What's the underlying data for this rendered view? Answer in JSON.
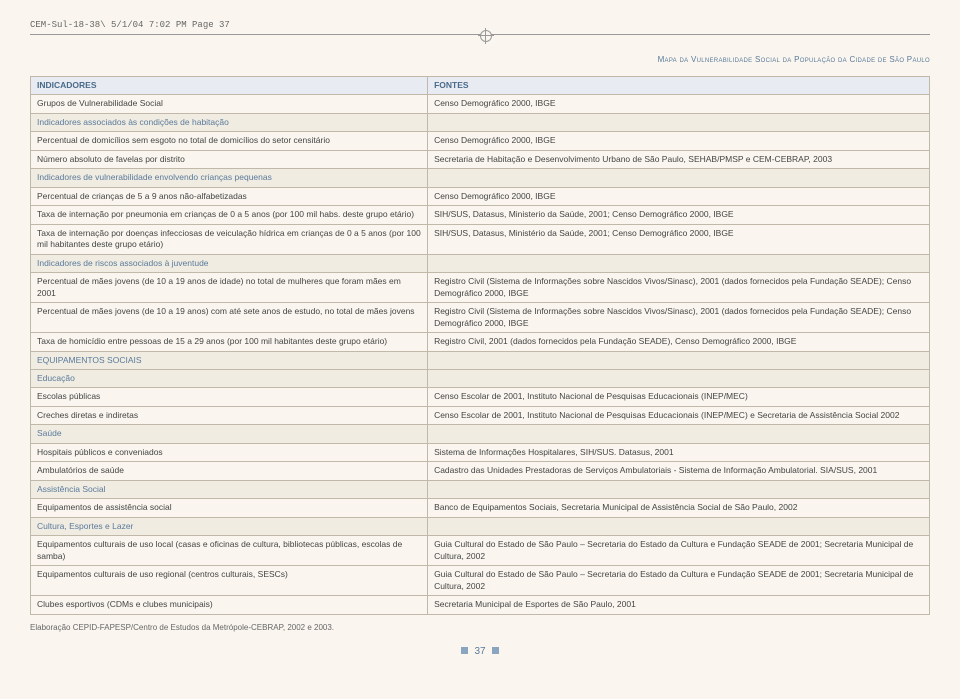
{
  "printHeader": "CEM-Sul-18-38\\  5/1/04  7:02 PM  Page 37",
  "docTitle": "Mapa da Vulnerabilidade Social da População da Cidade de São Paulo",
  "headers": {
    "left": "INDICADORES",
    "right": "FONTES"
  },
  "rows": [
    {
      "type": "data",
      "l": "Grupos de Vulnerabilidade Social",
      "r": "Censo Demográfico 2000, IBGE"
    },
    {
      "type": "section",
      "l": "Indicadores associados às condições de habitação",
      "r": ""
    },
    {
      "type": "data",
      "l": "Percentual de domicílios sem esgoto no total de domicílios do setor censitário",
      "r": "Censo Demográfico 2000, IBGE"
    },
    {
      "type": "data",
      "l": "Número absoluto de favelas por distrito",
      "r": "Secretaria de Habitação e Desenvolvimento Urbano de São Paulo, SEHAB/PMSP e CEM-CEBRAP, 2003"
    },
    {
      "type": "section",
      "l": "Indicadores de vulnerabilidade envolvendo crianças pequenas",
      "r": ""
    },
    {
      "type": "data",
      "l": "Percentual de crianças de 5 a 9 anos não-alfabetizadas",
      "r": "Censo Demográfico 2000, IBGE"
    },
    {
      "type": "data",
      "l": "Taxa de internação por pneumonia em crianças de 0 a 5 anos (por 100 mil habs. deste grupo etário)",
      "r": "SIH/SUS, Datasus, Ministerio da Saúde, 2001; Censo Demográfico 2000, IBGE"
    },
    {
      "type": "data",
      "l": "Taxa de internação por doenças infecciosas de veiculação hídrica em crianças de 0 a 5 anos (por 100 mil habitantes deste grupo etário)",
      "r": "SIH/SUS, Datasus, Ministério da Saúde, 2001; Censo Demográfico 2000, IBGE"
    },
    {
      "type": "section",
      "l": "Indicadores de riscos associados à juventude",
      "r": ""
    },
    {
      "type": "data",
      "l": "Percentual de mães jovens (de 10 a 19 anos de idade) no total de mulheres que foram mães em 2001",
      "r": "Registro Civil (Sistema de Informações sobre Nascidos Vivos/Sinasc), 2001 (dados fornecidos pela Fundação SEADE); Censo Demográfico 2000, IBGE"
    },
    {
      "type": "data",
      "l": "Percentual de mães jovens (de 10 a 19 anos) com até sete anos de estudo, no total de mães jovens",
      "r": "Registro Civil (Sistema de Informações sobre Nascidos Vivos/Sinasc), 2001 (dados fornecidos pela Fundação SEADE); Censo Demográfico 2000, IBGE"
    },
    {
      "type": "data",
      "l": "Taxa de homicídio entre pessoas de 15 a 29 anos (por 100 mil habitantes deste grupo etário)",
      "r": "Registro Civil, 2001 (dados fornecidos pela Fundação SEADE), Censo Demográfico 2000, IBGE"
    },
    {
      "type": "section",
      "l": "EQUIPAMENTOS SOCIAIS",
      "r": ""
    },
    {
      "type": "section",
      "l": "Educação",
      "r": ""
    },
    {
      "type": "data",
      "l": "Escolas públicas",
      "r": "Censo Escolar de 2001, Instituto Nacional de  Pesquisas Educacionais (INEP/MEC)"
    },
    {
      "type": "data",
      "l": "Creches diretas e indiretas",
      "r": "Censo Escolar de 2001, Instituto Nacional de Pesquisas Educacionais (INEP/MEC) e Secretaria de Assistência Social 2002"
    },
    {
      "type": "section",
      "l": "Saúde",
      "r": ""
    },
    {
      "type": "data",
      "l": "Hospitais públicos e conveniados",
      "r": "Sistema de Informações Hospitalares, SIH/SUS. Datasus, 2001"
    },
    {
      "type": "data",
      "l": "Ambulatórios de saúde",
      "r": "Cadastro das Unidades Prestadoras de Serviços Ambulatoriais - Sistema de Informação Ambulatorial. SIA/SUS, 2001"
    },
    {
      "type": "section",
      "l": "Assistência Social",
      "r": ""
    },
    {
      "type": "data",
      "l": "Equipamentos de assistência social",
      "r": "Banco de Equipamentos Sociais, Secretaria Municipal de Assistência Social de São Paulo, 2002"
    },
    {
      "type": "section",
      "l": "Cultura, Esportes e Lazer",
      "r": ""
    },
    {
      "type": "data",
      "l": "Equipamentos culturais de uso local (casas e oficinas de cultura, bibliotecas públicas, escolas de samba)",
      "r": "Guia Cultural do Estado de São Paulo – Secretaria do Estado da Cultura e Fundação SEADE de 2001; Secretaria Municipal de Cultura, 2002"
    },
    {
      "type": "data",
      "l": "Equipamentos culturais de uso regional (centros culturais, SESCs)",
      "r": "Guia Cultural do Estado de São Paulo – Secretaria do Estado da Cultura e Fundação SEADE de 2001; Secretaria Municipal de Cultura, 2002"
    },
    {
      "type": "data",
      "l": "Clubes esportivos (CDMs e clubes municipais)",
      "r": "Secretaria Municipal de Esportes de São Paulo, 2001"
    }
  ],
  "footnote": "Elaboração CEPID-FAPESP/Centro de Estudos da Metrópole-CEBRAP, 2002 e 2003.",
  "pageNumber": "37"
}
